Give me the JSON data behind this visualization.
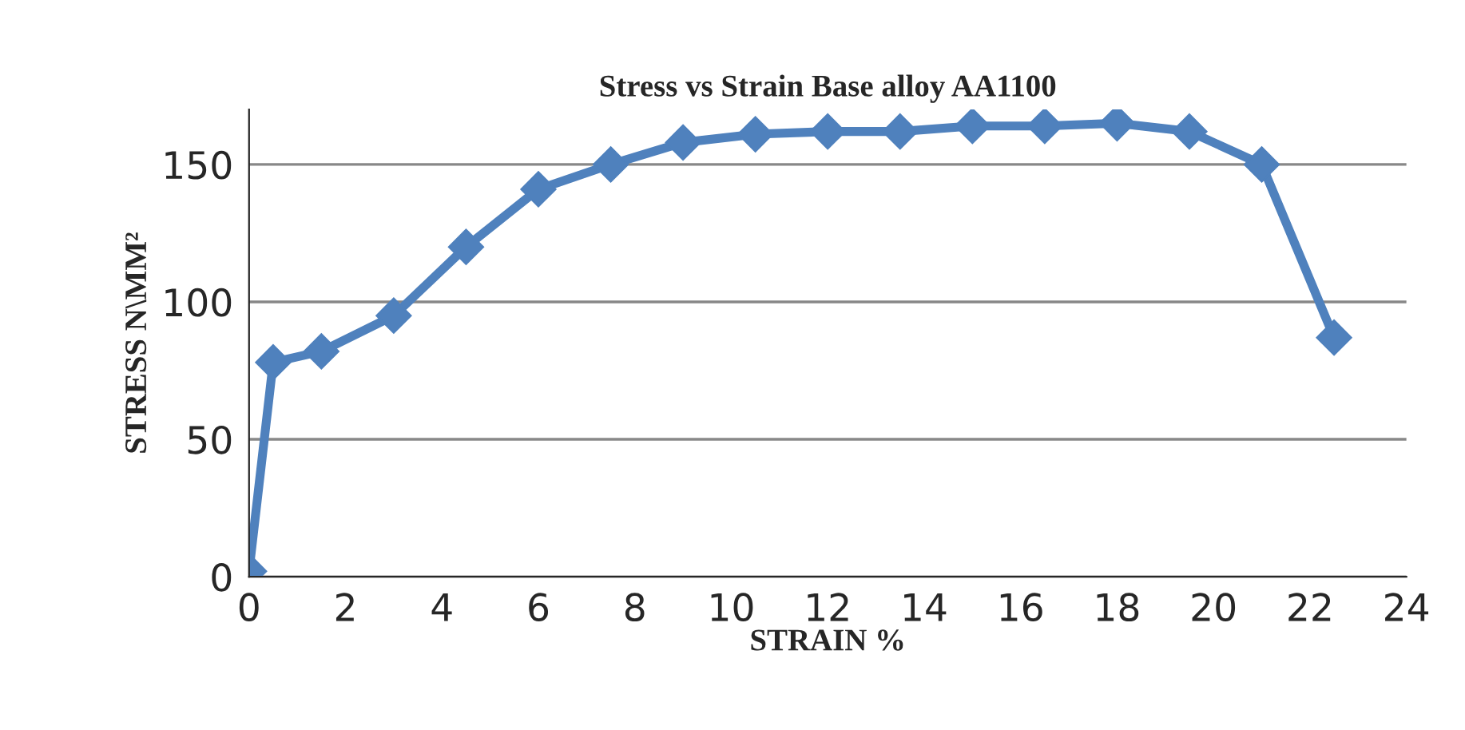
{
  "chart_data": {
    "type": "line",
    "title": "Stress vs Strain Base alloy AA1100",
    "xlabel": "STRAIN %",
    "ylabel": "STRESS N\\MM²",
    "x": [
      0,
      0.5,
      1.5,
      3,
      4.5,
      6,
      7.5,
      9,
      10.5,
      12,
      13.5,
      15,
      16.5,
      18,
      19.5,
      21,
      22.5
    ],
    "series": [
      {
        "color": "#4f81bd",
        "values": [
          2,
          78,
          82,
          95,
          120,
          141,
          150,
          158,
          161,
          162,
          162,
          164,
          164,
          165,
          162,
          150,
          87
        ]
      }
    ],
    "xlim": [
      0,
      24
    ],
    "xticks": [
      0,
      2,
      4,
      6,
      8,
      10,
      12,
      14,
      16,
      18,
      20,
      22,
      24
    ],
    "ylim": [
      0,
      170
    ],
    "yticks": [
      0,
      50,
      100,
      150
    ],
    "grid": "y",
    "marker": "diamond",
    "line_style": "solid",
    "legend": false
  }
}
